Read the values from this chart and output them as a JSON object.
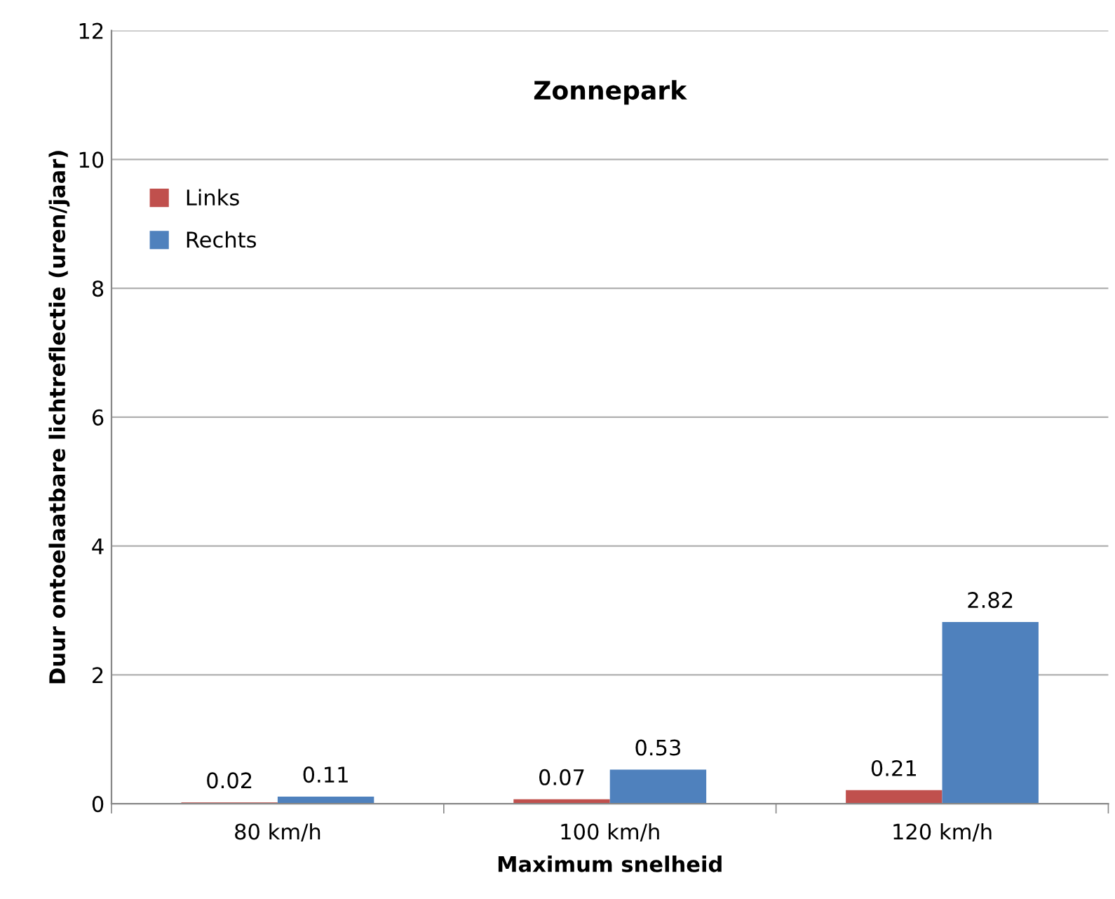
{
  "chart_data": {
    "type": "bar",
    "title": "Zonnepark",
    "xlabel": "Maximum snelheid",
    "ylabel": "Duur ontoelaatbare lichtreflectie (uren/jaar)",
    "categories": [
      "80 km/h",
      "100 km/h",
      "120 km/h"
    ],
    "series": [
      {
        "name": "Links",
        "color": "#c0504d",
        "values": [
          0.02,
          0.07,
          0.21
        ]
      },
      {
        "name": "Rechts",
        "color": "#4f81bd",
        "values": [
          0.11,
          0.53,
          2.82
        ]
      }
    ],
    "ylim": [
      0,
      12
    ],
    "yticks": [
      0,
      2,
      4,
      6,
      8,
      10,
      12
    ],
    "grid": "y",
    "legend": "top left",
    "data_labels": true
  }
}
